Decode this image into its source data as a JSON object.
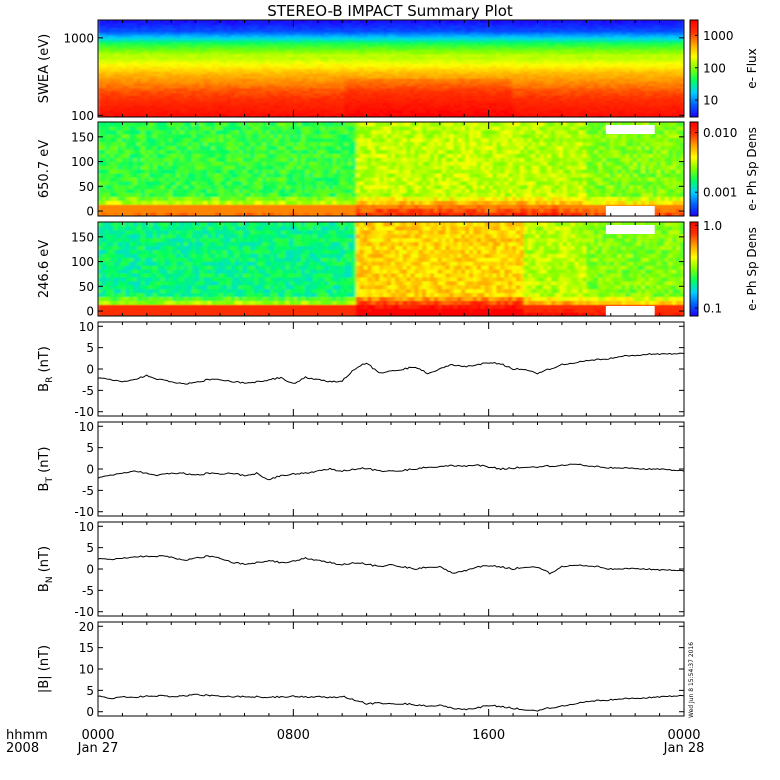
{
  "title": "STEREO-B IMPACT Summary Plot",
  "stamp": "Wed Jun  8 15:54:37 2016",
  "time_axis": {
    "row_label_1": "hhmm",
    "row_label_2": "2008",
    "ticks": [
      {
        "hours": 0,
        "label": "0000",
        "sublabel": "Jan 27"
      },
      {
        "hours": 8,
        "label": "0800",
        "sublabel": ""
      },
      {
        "hours": 16,
        "label": "1600",
        "sublabel": ""
      },
      {
        "hours": 24,
        "label": "0000",
        "sublabel": "Jan 28"
      }
    ],
    "range_hours": [
      0,
      24
    ]
  },
  "colors": {
    "colormap": [
      "#1e00ff",
      "#0060ff",
      "#00d0ff",
      "#00ff60",
      "#80ff00",
      "#ffff00",
      "#ffa000",
      "#ff3000",
      "#ff0000"
    ]
  },
  "chart_data": [
    {
      "type": "heatmap",
      "ylabel": "SWEA (eV)",
      "ylog": true,
      "ylim": [
        95,
        1700
      ],
      "yticks": [
        "1000",
        "100"
      ],
      "ytick_values": [
        1000,
        100
      ],
      "colorbar_label": "e- Flux",
      "colorbar_log": true,
      "colorbar_range": [
        3,
        3000
      ],
      "colorbar_ticks": [
        "1000",
        "100",
        "10"
      ],
      "colorbar_tick_values": [
        1000,
        100,
        10
      ]
    },
    {
      "type": "heatmap",
      "ylabel": "650.7 eV",
      "ylim": [
        -10,
        180
      ],
      "yticks": [
        "150",
        "100",
        "50",
        "0"
      ],
      "ytick_values": [
        150,
        100,
        50,
        0
      ],
      "colorbar_label": "e- Ph Sp Dens",
      "colorbar_log": true,
      "colorbar_range": [
        0.0004,
        0.015
      ],
      "colorbar_ticks": [
        "0.010",
        "0.001"
      ],
      "colorbar_tick_values": [
        0.01,
        0.001
      ]
    },
    {
      "type": "heatmap",
      "ylabel": "246.6 eV",
      "ylim": [
        -10,
        180
      ],
      "yticks": [
        "150",
        "100",
        "50",
        "0"
      ],
      "ytick_values": [
        150,
        100,
        50,
        0
      ],
      "colorbar_label": "e- Ph Sp Dens",
      "colorbar_log": true,
      "colorbar_range": [
        0.08,
        1.1
      ],
      "colorbar_ticks": [
        "1.0",
        "0.1"
      ],
      "colorbar_tick_values": [
        1.0,
        0.1
      ]
    },
    {
      "type": "line",
      "ylabel": "B_R (nT)",
      "ylabel_main": "B",
      "ylabel_sub": "R",
      "ylabel_unit": " (nT)",
      "ylim": [
        -11,
        11
      ],
      "yticks": [
        "10",
        "5",
        "0",
        "-5",
        "-10"
      ],
      "ytick_values": [
        10,
        5,
        0,
        -5,
        -10
      ],
      "x": [
        0,
        0.5,
        1,
        1.5,
        2,
        2.5,
        3,
        3.5,
        4,
        4.5,
        5,
        5.5,
        6,
        6.5,
        7,
        7.5,
        8,
        8.5,
        9,
        9.5,
        10,
        10.5,
        11,
        11.5,
        12,
        12.5,
        13,
        13.5,
        14,
        14.5,
        15,
        15.5,
        16,
        16.5,
        17,
        17.5,
        18,
        18.5,
        19,
        19.5,
        20,
        20.5,
        21,
        21.5,
        22,
        22.5,
        23,
        23.5,
        24
      ],
      "y": [
        -2,
        -2.5,
        -3,
        -2.5,
        -1.5,
        -2.5,
        -3,
        -3.5,
        -3.2,
        -2.5,
        -2.5,
        -3,
        -3.2,
        -3,
        -2.5,
        -2,
        -3.5,
        -2,
        -2.5,
        -3,
        -2.8,
        0,
        1.5,
        -1,
        -0.5,
        0,
        0.5,
        -1,
        0,
        1,
        0.5,
        1,
        1.5,
        1.2,
        0,
        0,
        -1,
        0,
        1,
        1.5,
        2,
        2.2,
        2.5,
        3,
        3.2,
        3.5,
        3.5,
        3.5,
        3.6
      ]
    },
    {
      "type": "line",
      "ylabel": "B_T (nT)",
      "ylabel_main": "B",
      "ylabel_sub": "T",
      "ylabel_unit": " (nT)",
      "ylim": [
        -11,
        11
      ],
      "yticks": [
        "10",
        "5",
        "0",
        "-5",
        "-10"
      ],
      "ytick_values": [
        10,
        5,
        0,
        -5,
        -10
      ],
      "x": [
        0,
        0.5,
        1,
        1.5,
        2,
        2.5,
        3,
        3.5,
        4,
        4.5,
        5,
        5.5,
        6,
        6.5,
        7,
        7.5,
        8,
        8.5,
        9,
        9.5,
        10,
        10.5,
        11,
        11.5,
        12,
        12.5,
        13,
        13.5,
        14,
        14.5,
        15,
        15.5,
        16,
        16.5,
        17,
        17.5,
        18,
        18.5,
        19,
        19.5,
        20,
        20.5,
        21,
        21.5,
        22,
        22.5,
        23,
        23.5,
        24
      ],
      "y": [
        -2,
        -1.5,
        -1,
        -0.5,
        -1,
        -1.5,
        -1,
        -1,
        -1.5,
        -1,
        -1.2,
        -1,
        -1.5,
        -1,
        -2.5,
        -1.5,
        -1.2,
        -1,
        -0.5,
        0,
        -0.5,
        0,
        0.2,
        -0.5,
        -0.5,
        -0.3,
        0,
        0.5,
        0.5,
        0.8,
        0.6,
        1,
        0.5,
        0,
        0.2,
        0.5,
        0.5,
        0.7,
        0.8,
        1.3,
        0.8,
        0.5,
        0.3,
        0.2,
        0.2,
        0,
        0,
        -0.3,
        -0.5
      ]
    },
    {
      "type": "line",
      "ylabel": "B_N (nT)",
      "ylabel_main": "B",
      "ylabel_sub": "N",
      "ylabel_unit": " (nT)",
      "ylim": [
        -11,
        11
      ],
      "yticks": [
        "10",
        "5",
        "0",
        "-5",
        "-10"
      ],
      "ytick_values": [
        10,
        5,
        0,
        -5,
        -10
      ],
      "x": [
        0,
        0.5,
        1,
        1.5,
        2,
        2.5,
        3,
        3.5,
        4,
        4.5,
        5,
        5.5,
        6,
        6.5,
        7,
        7.5,
        8,
        8.5,
        9,
        9.5,
        10,
        10.5,
        11,
        11.5,
        12,
        12.5,
        13,
        13.5,
        14,
        14.5,
        15,
        15.5,
        16,
        16.5,
        17,
        17.5,
        18,
        18.5,
        19,
        19.5,
        20,
        20.5,
        21,
        21.5,
        22,
        22.5,
        23,
        23.5,
        24
      ],
      "y": [
        2.5,
        2.2,
        2.5,
        2.8,
        3,
        3,
        2.8,
        2,
        2.5,
        3,
        2.5,
        1.5,
        1.2,
        1.5,
        2,
        1.5,
        1.8,
        2.5,
        2,
        1.5,
        1,
        1.5,
        1.2,
        0.5,
        1,
        0.5,
        0,
        0.5,
        0.5,
        -1,
        -0.5,
        0.5,
        0.8,
        0.5,
        0,
        0.5,
        0.5,
        -1,
        0.5,
        1,
        0.8,
        0.5,
        0,
        0,
        0.2,
        0,
        -0.2,
        -0.3,
        -0.5
      ]
    },
    {
      "type": "line",
      "ylabel": "|B| (nT)",
      "ylim": [
        -1,
        21
      ],
      "yticks": [
        "20",
        "15",
        "10",
        "5",
        "0"
      ],
      "ytick_values": [
        20,
        15,
        10,
        5,
        0
      ],
      "x": [
        0,
        0.5,
        1,
        1.5,
        2,
        2.5,
        3,
        3.5,
        4,
        4.5,
        5,
        5.5,
        6,
        6.5,
        7,
        7.5,
        8,
        8.5,
        9,
        9.5,
        10,
        10.5,
        11,
        11.5,
        12,
        12.5,
        13,
        13.5,
        14,
        14.5,
        15,
        15.5,
        16,
        16.5,
        17,
        17.5,
        18,
        18.5,
        19,
        19.5,
        20,
        20.5,
        21,
        21.5,
        22,
        22.5,
        23,
        23.5,
        24
      ],
      "y": [
        3.8,
        3,
        3.5,
        3.3,
        3.7,
        3.7,
        3.5,
        3.7,
        4,
        3.8,
        3.6,
        3.5,
        3.6,
        3.5,
        3.4,
        3.5,
        3.6,
        3.4,
        3.5,
        3.3,
        3.6,
        2.8,
        1.9,
        2,
        1.8,
        1.9,
        1.6,
        1.4,
        1.5,
        0.8,
        0.5,
        0.9,
        1.5,
        1.2,
        0.8,
        0.5,
        0.3,
        0.9,
        1.3,
        1.9,
        2.4,
        2.6,
        2.8,
        3,
        3.2,
        3.3,
        3.5,
        3.6,
        3.7
      ]
    }
  ]
}
